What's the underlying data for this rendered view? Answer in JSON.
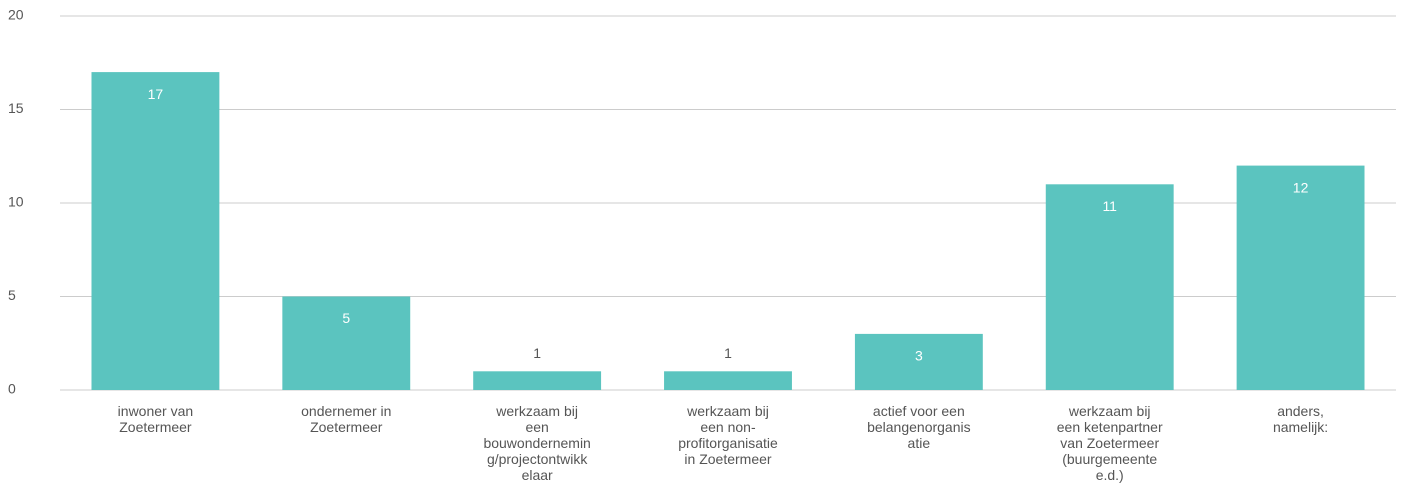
{
  "chart_data": {
    "type": "bar",
    "categories": [
      "inwoner van\nZoetermeer",
      "ondernemer in\nZoetermeer",
      "werkzaam bij\neen\nbouwondernemin\ng/projectontwikk\nelaar",
      "werkzaam bij\neen non-\nprofitorganisatie\nin Zoetermeer",
      "actief voor een\nbelangenorganis\natie",
      "werkzaam bij\neen ketenpartner\nvan Zoetermeer\n(buurgemeente\ne.d.)",
      "anders,\nnamelijk:"
    ],
    "values": [
      17,
      5,
      1,
      1,
      3,
      11,
      12
    ],
    "color": "#5bc4bf",
    "ylim": [
      0,
      20
    ],
    "yticks": [
      0,
      5,
      10,
      15,
      20
    ],
    "grid": true
  }
}
